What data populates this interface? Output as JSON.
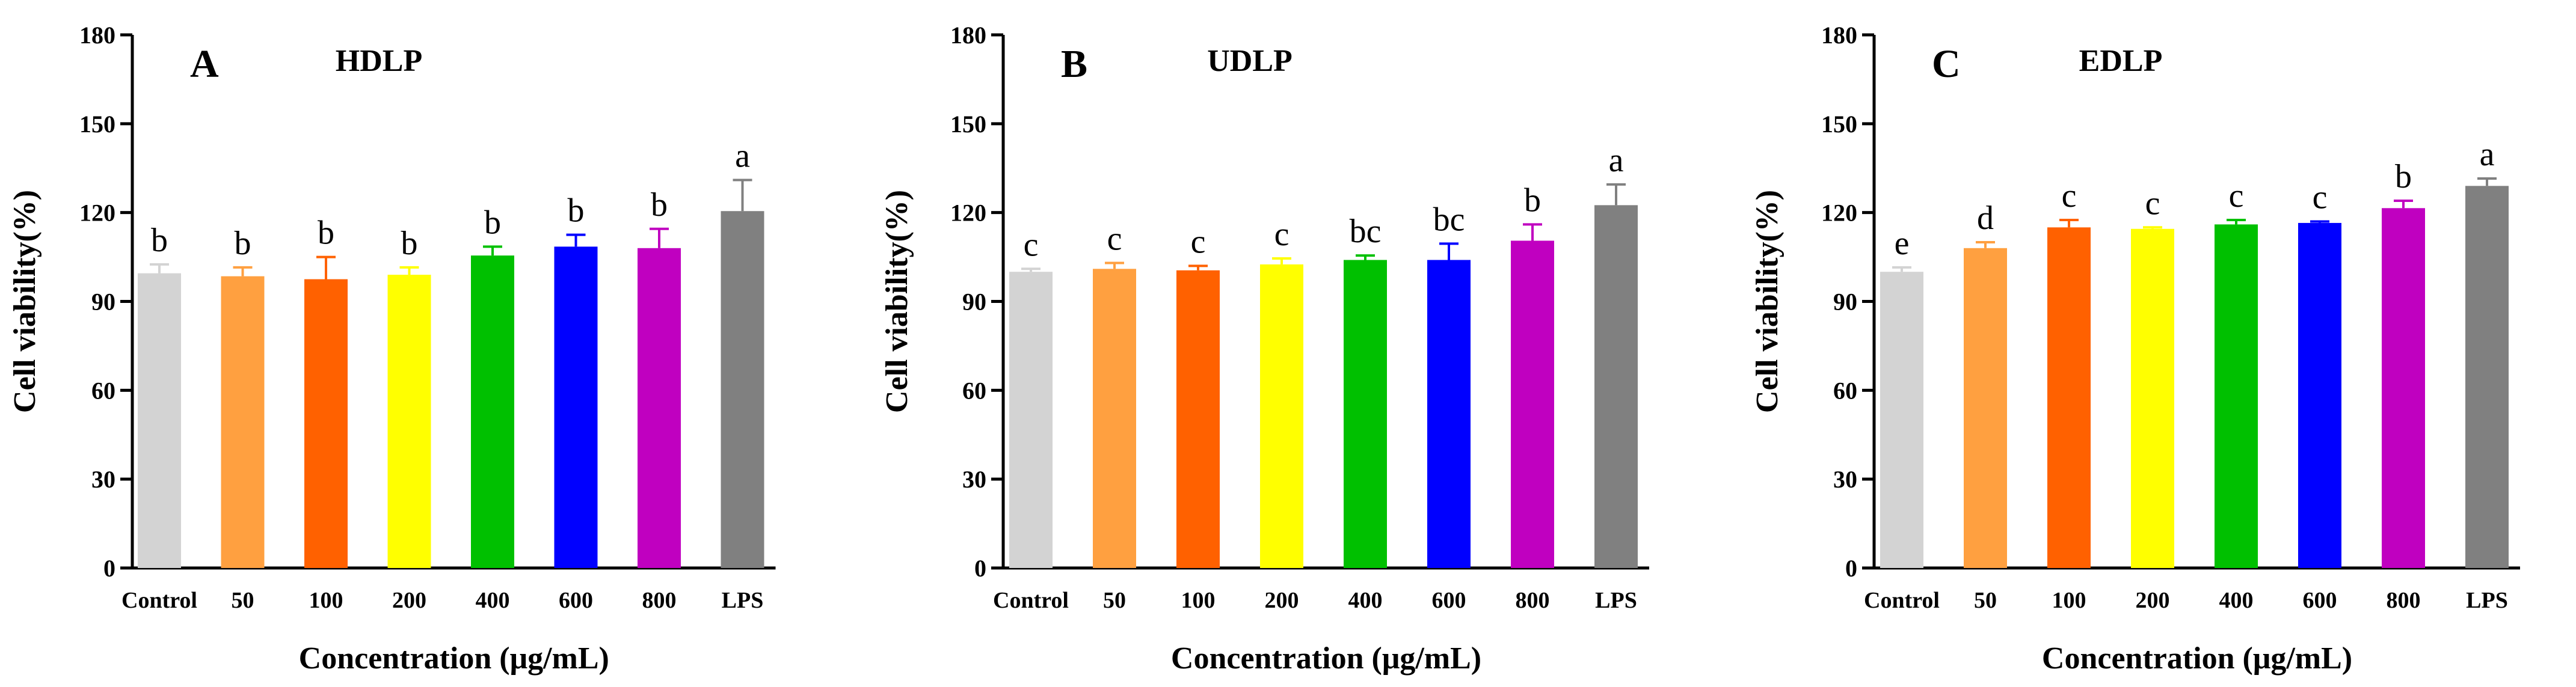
{
  "chart_data": [
    {
      "type": "bar",
      "panel": "A",
      "title": "HDLP",
      "xlabel": "Concentration (μg/mL)",
      "ylabel": "Cell viability(%)",
      "ylim": [
        0,
        180
      ],
      "yticks": [
        0,
        30,
        60,
        90,
        120,
        150,
        180
      ],
      "categories": [
        "Control",
        "50",
        "100",
        "200",
        "400",
        "600",
        "800",
        "LPS"
      ],
      "values": [
        99.5,
        98.5,
        97.5,
        99,
        105.5,
        108.5,
        108,
        120.5
      ],
      "errors": [
        3,
        3,
        7.5,
        2.5,
        3,
        4,
        6.5,
        10.5
      ],
      "significance": [
        "b",
        "b",
        "b",
        "b",
        "b",
        "b",
        "b",
        "a"
      ],
      "colors": [
        "#d3d3d3",
        "#ffa040",
        "#ff6100",
        "#ffff00",
        "#00c000",
        "#0000ff",
        "#c000c0",
        "#808080"
      ]
    },
    {
      "type": "bar",
      "panel": "B",
      "title": "UDLP",
      "xlabel": "Concentration (μg/mL)",
      "ylabel": "Cell viability(%)",
      "ylim": [
        0,
        180
      ],
      "yticks": [
        0,
        30,
        60,
        90,
        120,
        150,
        180
      ],
      "categories": [
        "Control",
        "50",
        "100",
        "200",
        "400",
        "600",
        "800",
        "LPS"
      ],
      "values": [
        100,
        101,
        100.5,
        102.5,
        104,
        104,
        110.5,
        122.5
      ],
      "errors": [
        1,
        2,
        1.5,
        2,
        1.5,
        5.5,
        5.5,
        7
      ],
      "significance": [
        "c",
        "c",
        "c",
        "c",
        "bc",
        "bc",
        "b",
        "a"
      ],
      "colors": [
        "#d3d3d3",
        "#ffa040",
        "#ff6100",
        "#ffff00",
        "#00c000",
        "#0000ff",
        "#c000c0",
        "#808080"
      ]
    },
    {
      "type": "bar",
      "panel": "C",
      "title": "EDLP",
      "xlabel": "Concentration (μg/mL)",
      "ylabel": "Cell viability(%)",
      "ylim": [
        0,
        180
      ],
      "yticks": [
        0,
        30,
        60,
        90,
        120,
        150,
        180
      ],
      "categories": [
        "Control",
        "50",
        "100",
        "200",
        "400",
        "600",
        "800",
        "LPS"
      ],
      "values": [
        100,
        108,
        115,
        114.5,
        116,
        116.5,
        121.5,
        129
      ],
      "errors": [
        1.5,
        2,
        2.5,
        0.5,
        1.5,
        0.5,
        2.5,
        2.5
      ],
      "significance": [
        "e",
        "d",
        "c",
        "c",
        "c",
        "c",
        "b",
        "a"
      ],
      "colors": [
        "#d3d3d3",
        "#ffa040",
        "#ff6100",
        "#ffff00",
        "#00c000",
        "#0000ff",
        "#c000c0",
        "#808080"
      ]
    }
  ]
}
